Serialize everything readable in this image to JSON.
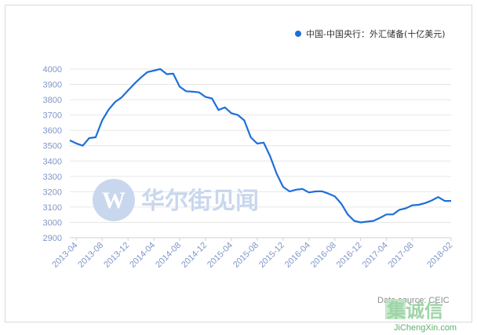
{
  "chart_data": {
    "type": "line",
    "legend_position": "top-right",
    "grid": true,
    "ylim": [
      2900,
      4000
    ],
    "yticks": [
      2900,
      3000,
      3100,
      3200,
      3300,
      3400,
      3500,
      3600,
      3700,
      3800,
      3900,
      4000
    ],
    "xtick_labels": [
      "2013-04",
      "2013-08",
      "2013-12",
      "2014-04",
      "2014-08",
      "2014-12",
      "2015-04",
      "2015-08",
      "2015-12",
      "2016-04",
      "2016-08",
      "2016-12",
      "2017-04",
      "2017-08",
      "2018-02"
    ],
    "series": [
      {
        "name": "中国-中国央行：外汇储备(十亿美元)",
        "color": "#1e6fd9",
        "x": [
          "2013-03",
          "2013-04",
          "2013-05",
          "2013-06",
          "2013-07",
          "2013-08",
          "2013-09",
          "2013-10",
          "2013-11",
          "2013-12",
          "2014-01",
          "2014-02",
          "2014-03",
          "2014-04",
          "2014-05",
          "2014-06",
          "2014-07",
          "2014-08",
          "2014-09",
          "2014-10",
          "2014-11",
          "2014-12",
          "2015-01",
          "2015-02",
          "2015-03",
          "2015-04",
          "2015-05",
          "2015-06",
          "2015-07",
          "2015-08",
          "2015-09",
          "2015-10",
          "2015-11",
          "2015-12",
          "2016-01",
          "2016-02",
          "2016-03",
          "2016-04",
          "2016-05",
          "2016-06",
          "2016-07",
          "2016-08",
          "2016-09",
          "2016-10",
          "2016-11",
          "2016-12",
          "2017-01",
          "2017-02",
          "2017-03",
          "2017-04",
          "2017-05",
          "2017-06",
          "2017-07",
          "2017-08",
          "2017-09",
          "2017-10",
          "2017-11",
          "2017-12",
          "2018-01",
          "2018-02"
        ],
        "values": [
          3535,
          3515,
          3500,
          3550,
          3555,
          3665,
          3735,
          3785,
          3815,
          3860,
          3905,
          3945,
          3980,
          3990,
          4000,
          3967,
          3970,
          3885,
          3855,
          3852,
          3848,
          3818,
          3808,
          3733,
          3750,
          3712,
          3700,
          3665,
          3555,
          3514,
          3520,
          3430,
          3318,
          3232,
          3202,
          3213,
          3218,
          3195,
          3202,
          3203,
          3188,
          3170,
          3122,
          3052,
          3010,
          3000,
          3005,
          3010,
          3030,
          3052,
          3052,
          3082,
          3092,
          3112,
          3115,
          3126,
          3143,
          3165,
          3140,
          3140
        ]
      }
    ],
    "source": "Data source: CEIC"
  },
  "watermark": {
    "logo_letter": "W",
    "text": "华尔街见闻"
  },
  "badge": {
    "text": "集诚信",
    "url": "JiChengXin.com"
  },
  "colors": {
    "line": "#1e6fd9",
    "grid": "#e6e6e6",
    "axis_labels": "#7f96c8"
  }
}
